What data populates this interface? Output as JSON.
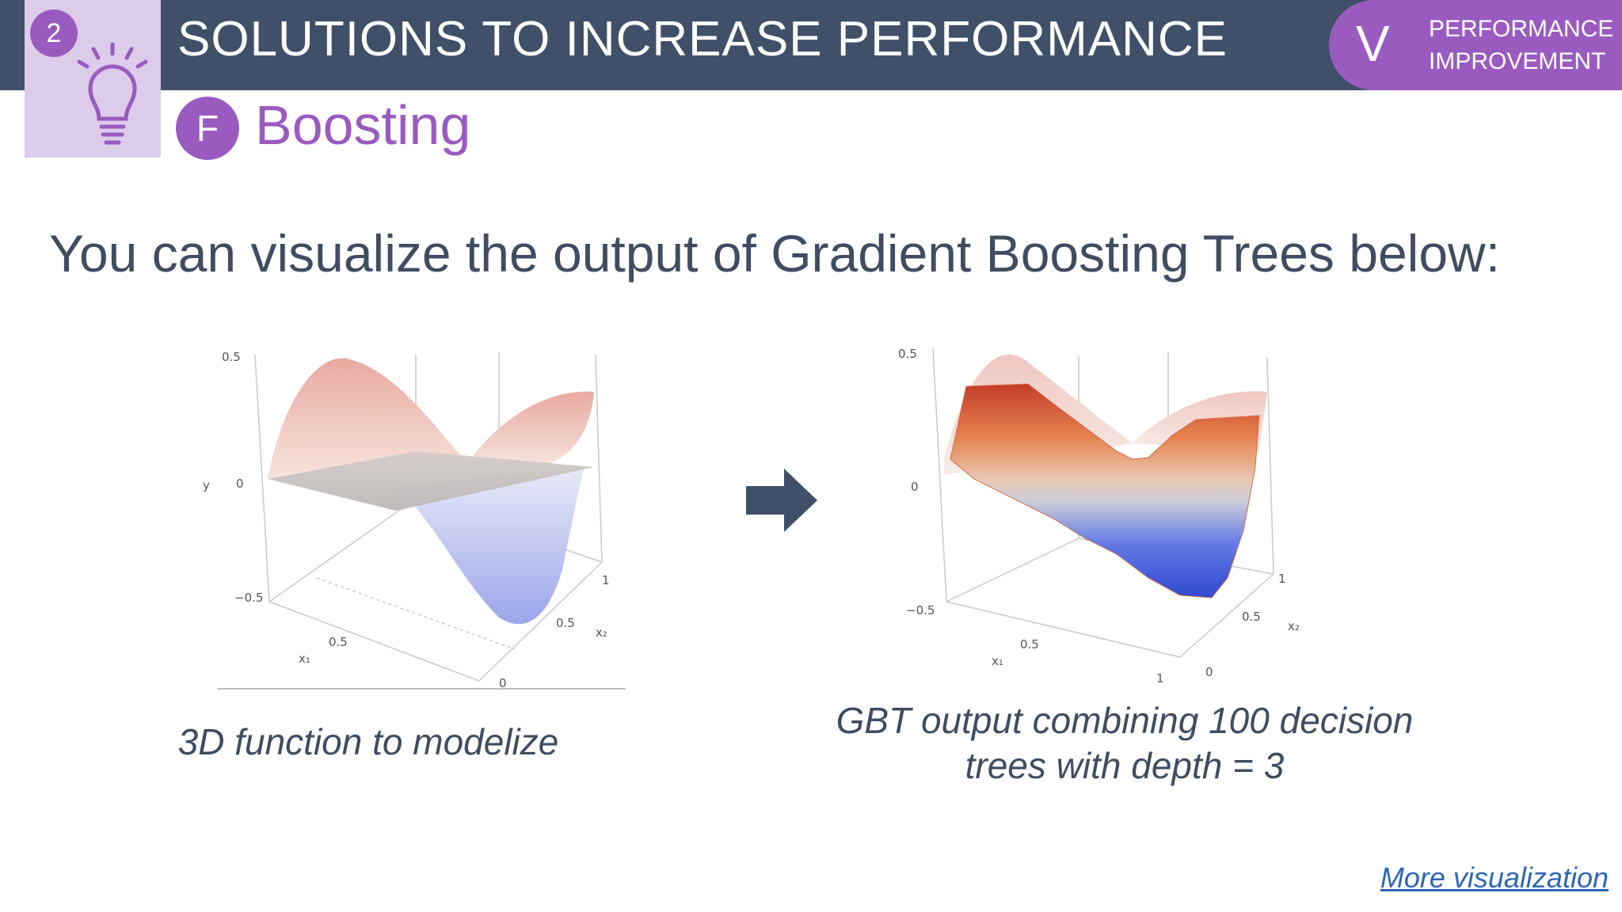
{
  "header": {
    "section_number": "2",
    "title": "SOLUTIONS TO INCREASE PERFORMANCE",
    "chapter_letter": "V",
    "chapter_label": "PERFORMANCE\nIMPROVEMENT",
    "bulb_icon": "lightbulb-icon"
  },
  "section": {
    "badge": "F",
    "title": "Boosting"
  },
  "headline": "You can visualize the output of Gradient Boosting Trees below:",
  "left_plot": {
    "ticks": {
      "z_top": "0.5",
      "z_mid": "0",
      "z_bottom": "−0.5",
      "y_label": "y",
      "x1_half": "0.5",
      "x1_label": "x₁",
      "x2_one": "1",
      "x2_half": "0.5",
      "x2_label": "x₂",
      "x2_zero": "0"
    },
    "caption": "3D function to modelize"
  },
  "right_plot": {
    "ticks": {
      "z_top": "0.5",
      "z_mid": "0",
      "z_bottom": "−0.5",
      "x1_half": "0.5",
      "x1_label": "x₁",
      "x1_one": "1",
      "x2_one": "1",
      "x2_half": "0.5",
      "x2_label": "x₂",
      "x2_zero": "0"
    },
    "caption": "GBT output combining 100 decision trees with depth = 3"
  },
  "arrow_icon": "right-arrow-icon",
  "link": {
    "label": "More visualization"
  },
  "colors": {
    "topbar": "#3f5068",
    "accent": "#9a5bc0",
    "idea_box": "#dccbe9",
    "text": "#3f4c61",
    "link": "#2e66b5"
  }
}
